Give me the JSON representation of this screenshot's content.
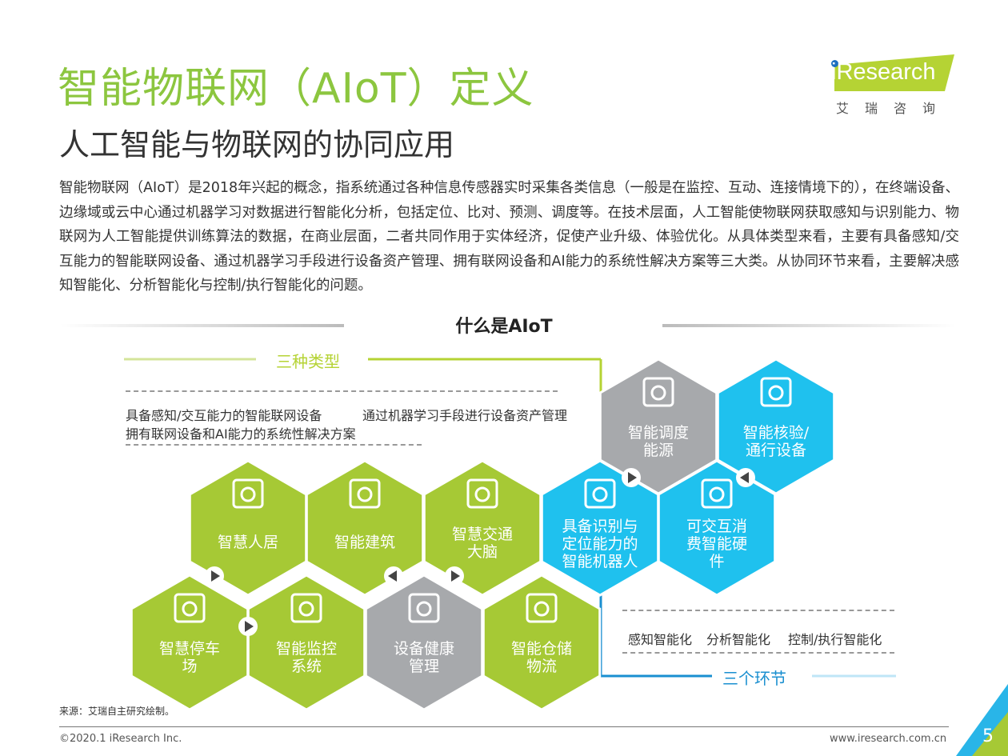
{
  "header": {
    "title": "智能物联网（AIoT）定义",
    "subtitle": "人工智能与物联网的协同应用"
  },
  "logo": {
    "brand": "iResearch",
    "cn": "艾瑞咨询"
  },
  "body_text": "智能物联网（AIoT）是2018年兴起的概念，指系统通过各种信息传感器实时采集各类信息（一般是在监控、互动、连接情境下的），在终端设备、边缘域或云中心通过机器学习对数据进行智能化分析，包括定位、比对、预测、调度等。在技术层面，人工智能使物联网获取感知与识别能力、物联网为人工智能提供训练算法的数据，在商业层面，二者共同作用于实体经济，促使产业升级、体验优化。从具体类型来看，主要有具备感知/交互能力的智能联网设备、通过机器学习手段进行设备资产管理、拥有联网设备和AI能力的系统性解决方案等三大类。从协同环节来看，主要解决感知智能化、分析智能化与控制/执行智能化的问题。",
  "diagram": {
    "title": "什么是AIoT",
    "types_label": "三种类型",
    "types": [
      "具备感知/交互能力的智能联网设备",
      "通过机器学习手段进行设备资产管理",
      "拥有联网设备和AI能力的系统性解决方案"
    ],
    "links_label": "三个环节",
    "links": [
      "感知智能化",
      "分析智能化",
      "控制/执行智能化"
    ],
    "colors": {
      "green": "#a6c935",
      "blue": "#1fc1ee",
      "gray": "#a7a9ac"
    },
    "hexes": [
      {
        "lines": [
          "智慧人居"
        ],
        "color": "green",
        "icon": "washing-machine-icon"
      },
      {
        "lines": [
          "智能建筑"
        ],
        "color": "green",
        "icon": "building-icon"
      },
      {
        "lines": [
          "智慧交通",
          "大脑"
        ],
        "color": "green",
        "icon": "car-icon"
      },
      {
        "lines": [
          "具备识别与",
          "定位能力的",
          "智能机器人"
        ],
        "color": "blue",
        "icon": "robot-icon"
      },
      {
        "lines": [
          "智慧停车",
          "场"
        ],
        "color": "green",
        "icon": "parking-barrier-icon"
      },
      {
        "lines": [
          "智能监控",
          "系统"
        ],
        "color": "green",
        "icon": "cctv-camera-icon"
      },
      {
        "lines": [
          "设备健康",
          "管理"
        ],
        "color": "gray",
        "icon": "globe-cursor-icon"
      },
      {
        "lines": [
          "智能仓储",
          "物流"
        ],
        "color": "green",
        "icon": "robotic-arm-icon"
      },
      {
        "lines": [
          "智能调度",
          "能源"
        ],
        "color": "gray",
        "icon": "factory-icon"
      },
      {
        "lines": [
          "智能核验/",
          "通行设备"
        ],
        "color": "blue",
        "icon": "turnstile-icon"
      },
      {
        "lines": [
          "可交互消",
          "费智能硬",
          "件"
        ],
        "color": "blue",
        "icon": "smart-speaker-icon"
      }
    ]
  },
  "footer": {
    "source": "来源：艾瑞自主研究绘制。",
    "copyright": "©2020.1 iResearch Inc.",
    "url": "www.iresearch.com.cn",
    "page": "5"
  }
}
